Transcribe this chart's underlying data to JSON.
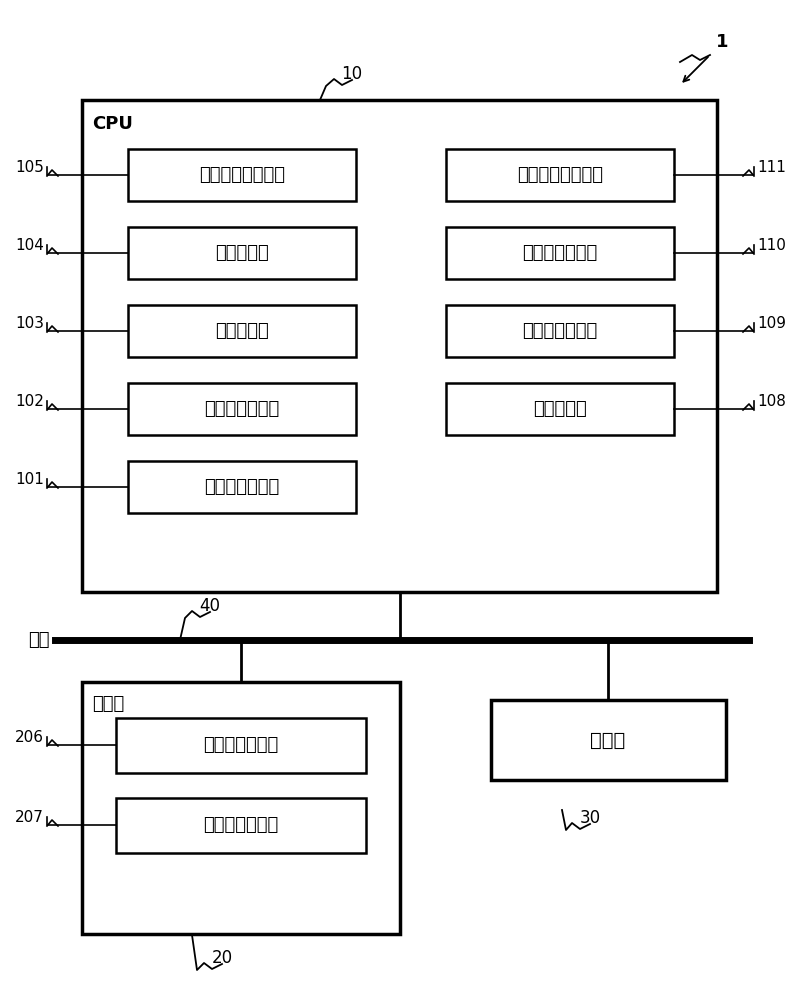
{
  "bg_color": "#ffffff",
  "fig_width": 7.99,
  "fig_height": 10.0,
  "label_1": "1",
  "label_10": "10",
  "label_40": "40",
  "label_20": "20",
  "label_30": "30",
  "cpu_label": "CPU",
  "bus_label": "总线",
  "memory_label": "存储器",
  "left_boxes": [
    {
      "label": "共享信息生成部",
      "tag": "101"
    },
    {
      "label": "共享信息管理部",
      "tag": "102"
    },
    {
      "label": "密钐管理部",
      "tag": "103"
    },
    {
      "label": "消息生成部",
      "tag": "104"
    },
    {
      "label": "安全用代码生成部",
      "tag": "105"
    }
  ],
  "right_boxes": [
    {
      "label": "消息解析部",
      "tag": "108"
    },
    {
      "label": "处理判断控制部",
      "tag": "109"
    },
    {
      "label": "共享信息验证部",
      "tag": "110"
    },
    {
      "label": "安全用代码验证部",
      "tag": "111"
    }
  ],
  "mem_boxes": [
    {
      "label": "加密信息存储部",
      "tag": "206"
    },
    {
      "label": "通信信息存储部",
      "tag": "207"
    }
  ],
  "comm_label": "通信部",
  "comm_tag": "30"
}
